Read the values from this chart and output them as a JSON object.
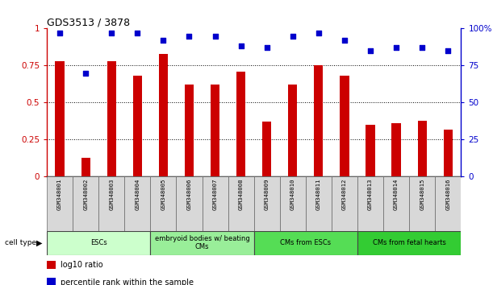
{
  "title": "GDS3513 / 3878",
  "samples": [
    "GSM348001",
    "GSM348002",
    "GSM348003",
    "GSM348004",
    "GSM348005",
    "GSM348006",
    "GSM348007",
    "GSM348008",
    "GSM348009",
    "GSM348010",
    "GSM348011",
    "GSM348012",
    "GSM348013",
    "GSM348014",
    "GSM348015",
    "GSM348016"
  ],
  "log10_ratio": [
    0.78,
    0.13,
    0.78,
    0.68,
    0.83,
    0.62,
    0.62,
    0.71,
    0.37,
    0.62,
    0.75,
    0.68,
    0.35,
    0.36,
    0.38,
    0.32
  ],
  "percentile_rank": [
    97,
    70,
    97,
    97,
    92,
    95,
    95,
    88,
    87,
    95,
    97,
    92,
    85,
    87,
    87,
    85
  ],
  "bar_color": "#cc0000",
  "dot_color": "#0000cc",
  "cell_types": [
    {
      "label": "ESCs",
      "start": 0,
      "end": 4,
      "color": "#ccffcc"
    },
    {
      "label": "embryoid bodies w/ beating\nCMs",
      "start": 4,
      "end": 8,
      "color": "#99ee99"
    },
    {
      "label": "CMs from ESCs",
      "start": 8,
      "end": 12,
      "color": "#55dd55"
    },
    {
      "label": "CMs from fetal hearts",
      "start": 12,
      "end": 16,
      "color": "#33cc33"
    }
  ],
  "ylim_left": [
    0,
    1.0
  ],
  "ylim_right": [
    0,
    100
  ],
  "yticks_left": [
    0,
    0.25,
    0.5,
    0.75,
    1.0
  ],
  "yticks_right": [
    0,
    25,
    50,
    75,
    100
  ],
  "ytick_left_labels": [
    "0",
    "0.25",
    "0.5",
    "0.75",
    "1"
  ],
  "ytick_right_labels": [
    "0",
    "25",
    "50",
    "75",
    "100%"
  ],
  "legend": [
    {
      "color": "#cc0000",
      "label": "log10 ratio"
    },
    {
      "color": "#0000cc",
      "label": "percentile rank within the sample"
    }
  ]
}
